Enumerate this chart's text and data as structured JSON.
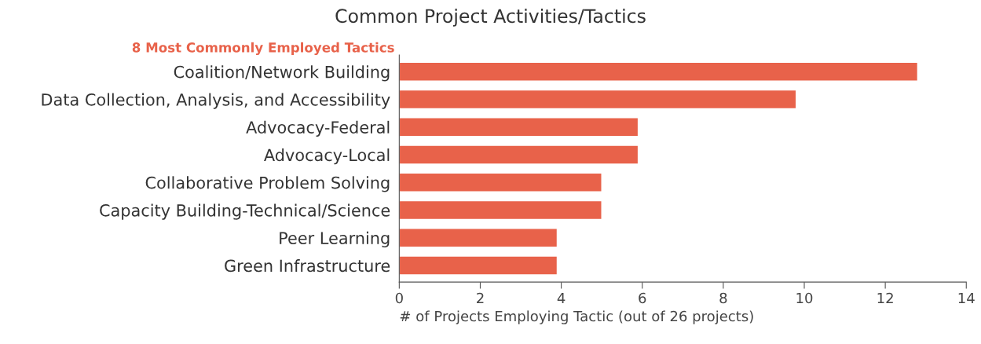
{
  "chart_data": {
    "type": "bar",
    "orientation": "horizontal",
    "title": "Common Project Activities/Tactics",
    "subtitle": "8 Most Commonly Employed Tactics",
    "categories": [
      "Coalition/Network Building",
      "Data Collection, Analysis, and Accessibility",
      "Advocacy-Federal",
      "Advocacy-Local",
      "Collaborative Problem Solving",
      "Capacity Building-Technical/Science",
      "Peer Learning",
      "Green Infrastructure"
    ],
    "values": [
      12.8,
      9.8,
      5.9,
      5.9,
      5.0,
      5.0,
      3.9,
      3.9
    ],
    "color": "#e8624a",
    "xlim": [
      0,
      14
    ],
    "xticks": [
      0,
      2,
      4,
      6,
      8,
      10,
      12,
      14
    ],
    "xlabel": "# of Projects Employing Tactic (out of 26 projects)",
    "grid": false
  }
}
